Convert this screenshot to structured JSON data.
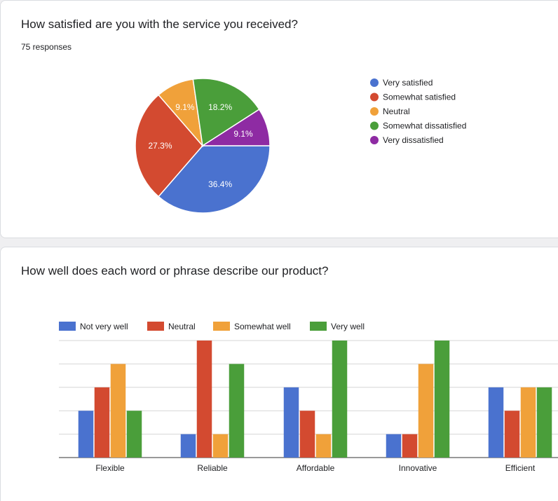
{
  "q1": {
    "title": "How satisfied are you with the service you received?",
    "responses": "75 responses"
  },
  "q2": {
    "title": "How well does each word or phrase describe our product?"
  },
  "colors": {
    "blue": "#4a72cf",
    "red": "#d34a30",
    "orange": "#f0a13a",
    "green": "#4a9e3a",
    "purple": "#8e2ba3"
  },
  "chart_data": [
    {
      "type": "pie",
      "legend_position": "right",
      "slices": [
        {
          "label": "Very satisfied",
          "value": 36.4,
          "display": "36.4%",
          "color": "#4a72cf"
        },
        {
          "label": "Somewhat satisfied",
          "value": 27.3,
          "display": "27.3%",
          "color": "#d34a30"
        },
        {
          "label": "Neutral",
          "value": 9.1,
          "display": "9.1%",
          "color": "#f0a13a"
        },
        {
          "label": "Somewhat dissatisfied",
          "value": 18.2,
          "display": "18.2%",
          "color": "#4a9e3a"
        },
        {
          "label": "Very dissatisfied",
          "value": 9.1,
          "display": "9.1%",
          "color": "#8e2ba3"
        }
      ]
    },
    {
      "type": "bar",
      "legend_position": "top",
      "grid": true,
      "ylim": [
        0,
        5
      ],
      "categories": [
        "Flexible",
        "Reliable",
        "Affordable",
        "Innovative",
        "Efficient"
      ],
      "series": [
        {
          "name": "Not very well",
          "color": "#4a72cf",
          "values": [
            2,
            1,
            3,
            1,
            3
          ]
        },
        {
          "name": "Neutral",
          "color": "#d34a30",
          "values": [
            3,
            5,
            2,
            1,
            2
          ]
        },
        {
          "name": "Somewhat well",
          "color": "#f0a13a",
          "values": [
            4,
            1,
            1,
            4,
            3
          ]
        },
        {
          "name": "Very well",
          "color": "#4a9e3a",
          "values": [
            2,
            4,
            5,
            5,
            3
          ]
        }
      ]
    }
  ]
}
